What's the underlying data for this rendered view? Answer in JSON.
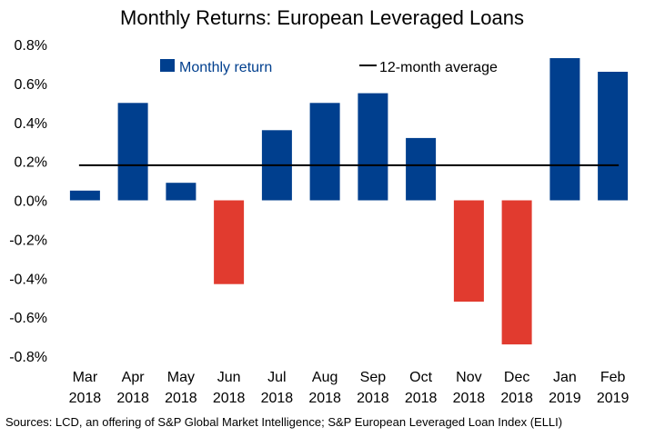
{
  "chart_data": {
    "type": "bar",
    "title": "Monthly Returns: European Leveraged Loans",
    "xlabel": "",
    "ylabel": "",
    "ylim": [
      -0.8,
      0.8
    ],
    "yticks": [
      "0.8%",
      "0.6%",
      "0.4%",
      "0.2%",
      "0.0%",
      "-0.2%",
      "-0.4%",
      "-0.6%",
      "-0.8%"
    ],
    "ytick_values": [
      0.8,
      0.6,
      0.4,
      0.2,
      0.0,
      -0.2,
      -0.4,
      -0.6,
      -0.8
    ],
    "categories": [
      [
        "Mar",
        "2018"
      ],
      [
        "Apr",
        "2018"
      ],
      [
        "May",
        "2018"
      ],
      [
        "Jun",
        "2018"
      ],
      [
        "Jul",
        "2018"
      ],
      [
        "Aug",
        "2018"
      ],
      [
        "Sep",
        "2018"
      ],
      [
        "Oct",
        "2018"
      ],
      [
        "Nov",
        "2018"
      ],
      [
        "Dec",
        "2018"
      ],
      [
        "Jan",
        "2019"
      ],
      [
        "Feb",
        "2019"
      ]
    ],
    "series": [
      {
        "name": "Monthly return",
        "values": [
          0.05,
          0.5,
          0.09,
          -0.43,
          0.36,
          0.5,
          0.55,
          0.32,
          -0.52,
          -0.74,
          0.73,
          0.66
        ]
      },
      {
        "name": "12-month average",
        "type": "line",
        "value": 0.18
      }
    ],
    "colors": {
      "positive": "#003f8e",
      "negative": "#e13b2f",
      "average_line": "#000000"
    },
    "legend": "top",
    "grid": false
  },
  "footer": {
    "source": "Sources: LCD, an offering of S&P Global Market Intelligence; S&P European Leveraged Loan Index (ELLI)"
  }
}
